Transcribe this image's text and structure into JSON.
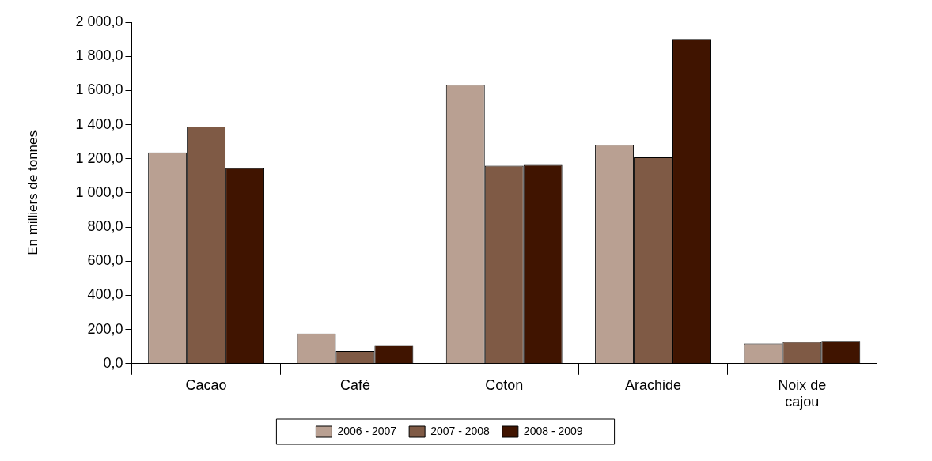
{
  "chart_data": {
    "type": "bar",
    "ylabel": "En milliers de tonnes",
    "categories": [
      "Cacao",
      "Café",
      "Coton",
      "Arachide",
      "Noix de cajou"
    ],
    "series": [
      {
        "name": "2006 - 2007",
        "color": "#b9a092",
        "values": [
          1237,
          176,
          1633,
          1281,
          117
        ]
      },
      {
        "name": "2007 - 2008",
        "color": "#7f5a45",
        "values": [
          1389,
          73,
          1159,
          1208,
          127
        ]
      },
      {
        "name": "2008 - 2009",
        "color": "#401400",
        "values": [
          1144,
          108,
          1164,
          1902,
          132
        ]
      }
    ],
    "ylim": [
      0,
      2000
    ],
    "yticks": [
      {
        "value": 0,
        "label": "0,0"
      },
      {
        "value": 200,
        "label": "200,0"
      },
      {
        "value": 400,
        "label": "400,0"
      },
      {
        "value": 600,
        "label": "600,0"
      },
      {
        "value": 800,
        "label": "800,0"
      },
      {
        "value": 1000,
        "label": "1 000,0"
      },
      {
        "value": 1200,
        "label": "1 200,0"
      },
      {
        "value": 1400,
        "label": "1 400,0"
      },
      {
        "value": 1600,
        "label": "1 600,0"
      },
      {
        "value": 1800,
        "label": "1 800,0"
      },
      {
        "value": 2000,
        "label": "2 000,0"
      }
    ],
    "grid": false,
    "legend": "bottom"
  }
}
